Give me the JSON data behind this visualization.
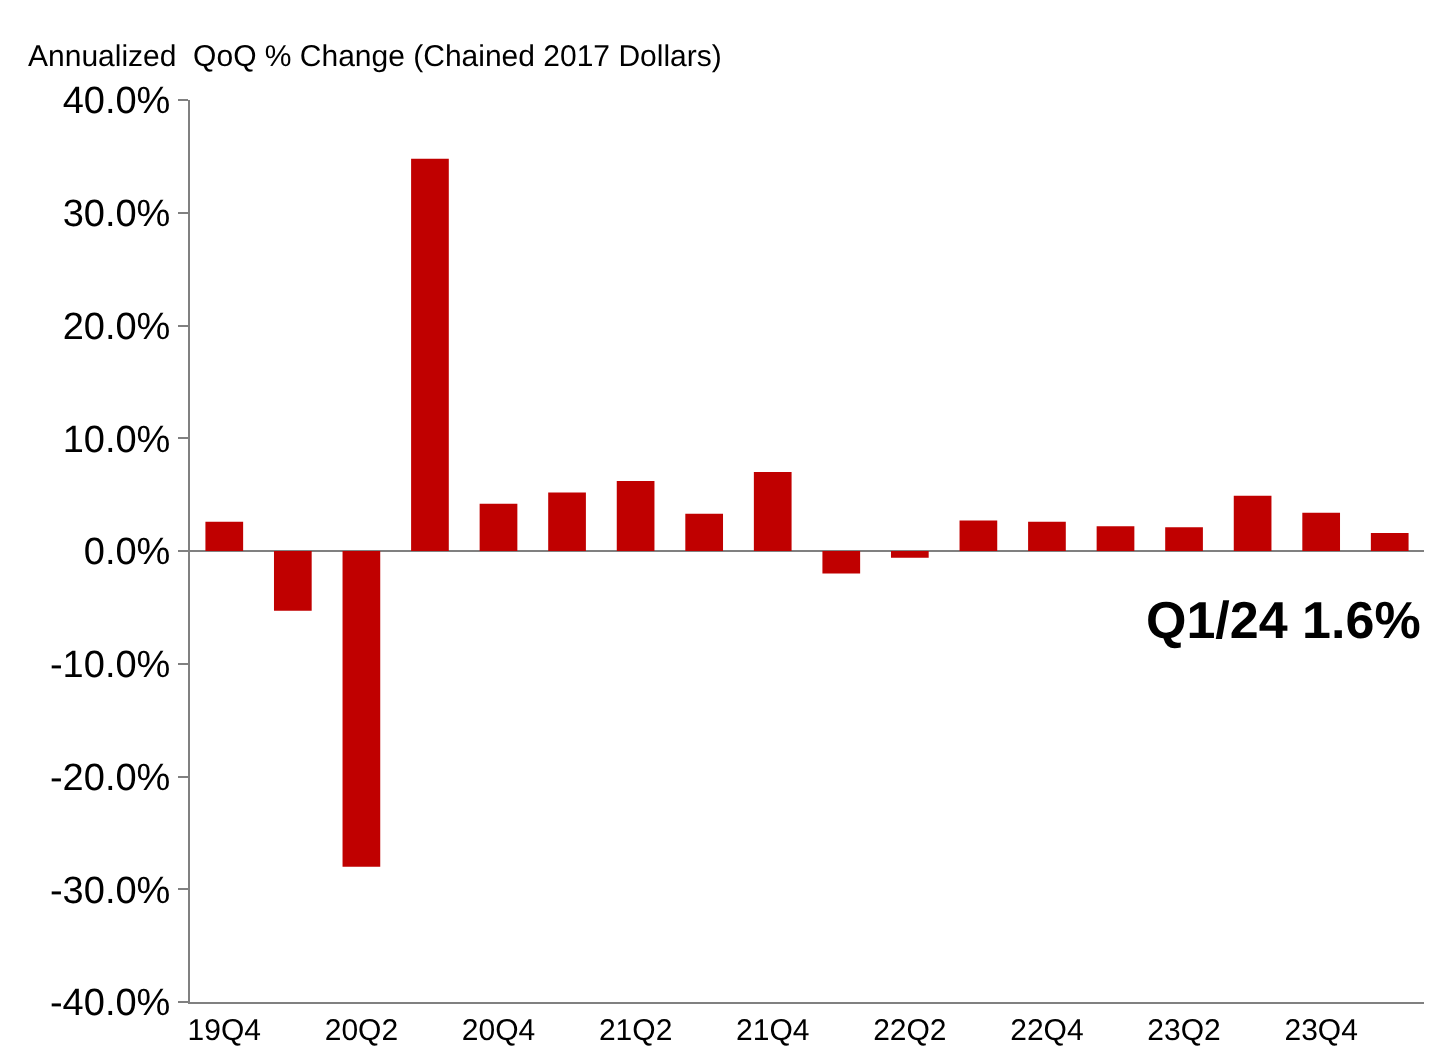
{
  "chart_data": {
    "type": "bar",
    "title": "Annualized  QoQ % Change (Chained 2017 Dollars)",
    "categories": [
      "19Q4",
      null,
      "20Q2",
      null,
      "20Q4",
      null,
      "21Q2",
      null,
      "21Q4",
      null,
      "22Q2",
      null,
      "22Q4",
      null,
      "23Q2",
      null,
      "23Q4",
      null
    ],
    "values": [
      2.6,
      -5.3,
      -28.0,
      34.8,
      4.2,
      5.2,
      6.2,
      3.3,
      7.0,
      -2.0,
      -0.6,
      2.7,
      2.6,
      2.2,
      2.1,
      4.9,
      3.4,
      1.6
    ],
    "color": "#c00000",
    "ylim": [
      -40,
      40
    ],
    "yticks": [
      {
        "value": -40,
        "label": "-40.0%"
      },
      {
        "value": -30,
        "label": "-30.0%"
      },
      {
        "value": -20,
        "label": "-20.0%"
      },
      {
        "value": -10,
        "label": "-10.0%"
      },
      {
        "value": 0,
        "label": "0.0%"
      },
      {
        "value": 10,
        "label": "10.0%"
      },
      {
        "value": 20,
        "label": "20.0%"
      },
      {
        "value": 30,
        "label": "30.0%"
      },
      {
        "value": 40,
        "label": "40.0%"
      }
    ],
    "annotations": [
      "Q1/24 1.6%"
    ]
  }
}
